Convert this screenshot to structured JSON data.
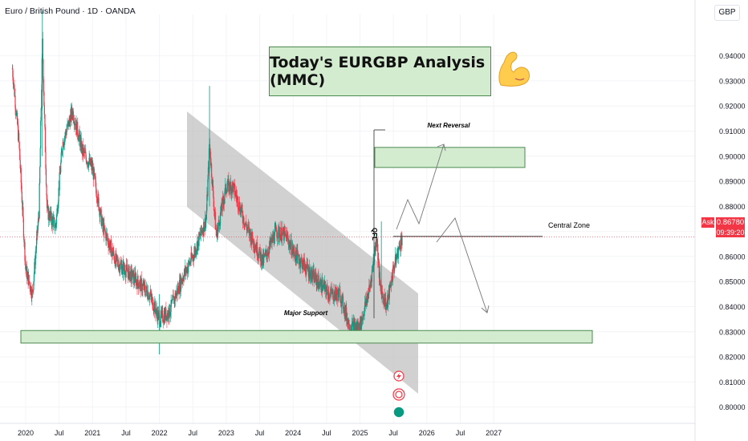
{
  "header": {
    "symbol_title": "Euro / British Pound · 1D · OANDA"
  },
  "currency_button": "GBP",
  "annotation": {
    "title": "Today's EURGBP Analysis (MMC)",
    "next_reversal": "Next Reversal",
    "central_zone": "Central Zone",
    "major_support": "Major Support",
    "qfl": "QFL"
  },
  "price_tag": {
    "side": "Ask",
    "price": "0.86780",
    "timer": "09:39:20",
    "color": "#f23645"
  },
  "colors": {
    "zone_fill": "#d3ecd0",
    "zone_border": "#4a8a4e",
    "channel_fill": "#bdbdbd",
    "up_candle": "#089981",
    "down_candle": "#f23645"
  },
  "chart_data": {
    "type": "candlestick",
    "y_axis": {
      "ticks": [
        "0.94000",
        "0.93000",
        "0.92000",
        "0.91000",
        "0.90000",
        "0.89000",
        "0.88000",
        "0.87000",
        "0.86000",
        "0.85000",
        "0.84000",
        "0.83000",
        "0.82000",
        "0.81000",
        "0.80000"
      ],
      "range": [
        0.7935,
        0.9565
      ]
    },
    "x_axis": {
      "ticks": [
        "2020",
        "Jul",
        "2021",
        "Jul",
        "2022",
        "Jul",
        "2023",
        "Jul",
        "2024",
        "Jul",
        "2025",
        "Jul",
        "2026",
        "Jul",
        "2027"
      ]
    },
    "price_path": [
      {
        "t": 2019.8,
        "v": 0.935
      },
      {
        "t": 2019.9,
        "v": 0.905
      },
      {
        "t": 2020.0,
        "v": 0.855
      },
      {
        "t": 2020.1,
        "v": 0.845
      },
      {
        "t": 2020.2,
        "v": 0.878
      },
      {
        "t": 2020.25,
        "v": 0.945
      },
      {
        "t": 2020.32,
        "v": 0.878
      },
      {
        "t": 2020.45,
        "v": 0.872
      },
      {
        "t": 2020.55,
        "v": 0.905
      },
      {
        "t": 2020.7,
        "v": 0.918
      },
      {
        "t": 2020.85,
        "v": 0.902
      },
      {
        "t": 2021.0,
        "v": 0.895
      },
      {
        "t": 2021.15,
        "v": 0.872
      },
      {
        "t": 2021.35,
        "v": 0.858
      },
      {
        "t": 2021.6,
        "v": 0.852
      },
      {
        "t": 2021.85,
        "v": 0.845
      },
      {
        "t": 2022.0,
        "v": 0.835
      },
      {
        "t": 2022.15,
        "v": 0.838
      },
      {
        "t": 2022.35,
        "v": 0.852
      },
      {
        "t": 2022.5,
        "v": 0.86
      },
      {
        "t": 2022.7,
        "v": 0.875
      },
      {
        "t": 2022.75,
        "v": 0.905
      },
      {
        "t": 2022.85,
        "v": 0.868
      },
      {
        "t": 2023.0,
        "v": 0.888
      },
      {
        "t": 2023.1,
        "v": 0.888
      },
      {
        "t": 2023.3,
        "v": 0.872
      },
      {
        "t": 2023.55,
        "v": 0.858
      },
      {
        "t": 2023.75,
        "v": 0.87
      },
      {
        "t": 2023.9,
        "v": 0.868
      },
      {
        "t": 2024.0,
        "v": 0.862
      },
      {
        "t": 2024.3,
        "v": 0.852
      },
      {
        "t": 2024.55,
        "v": 0.845
      },
      {
        "t": 2024.7,
        "v": 0.845
      },
      {
        "t": 2024.85,
        "v": 0.832
      },
      {
        "t": 2025.0,
        "v": 0.832
      },
      {
        "t": 2025.15,
        "v": 0.848
      },
      {
        "t": 2025.25,
        "v": 0.868
      },
      {
        "t": 2025.3,
        "v": 0.848
      },
      {
        "t": 2025.4,
        "v": 0.84
      },
      {
        "t": 2025.5,
        "v": 0.855
      },
      {
        "t": 2025.6,
        "v": 0.865
      },
      {
        "t": 2025.63,
        "v": 0.8678
      }
    ],
    "zones": [
      {
        "name": "Next Reversal",
        "t0": 2025.3,
        "t1": 2026.5,
        "low": 0.8955,
        "high": 0.9035
      },
      {
        "name": "Major Support",
        "t0": 2019.85,
        "t1": 2028.8,
        "low": 0.8255,
        "high": 0.8305
      }
    ],
    "central_zone_level": 0.868,
    "current_price": 0.8678
  }
}
